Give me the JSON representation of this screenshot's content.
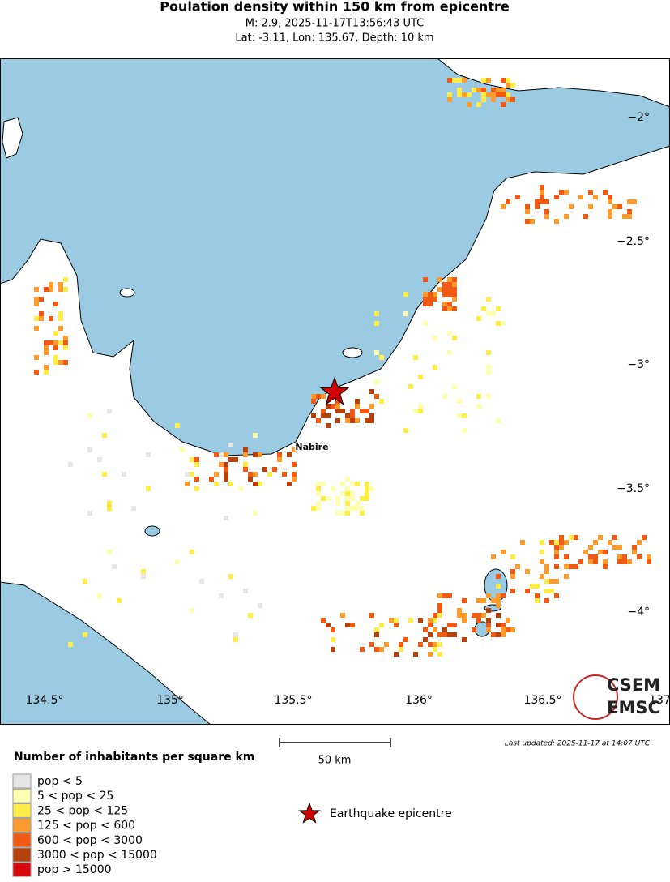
{
  "header": {
    "title": "Poulation density within 150 km from epicentre",
    "line1": "M: 2.9,  2025-11-17T13:56:43 UTC",
    "line2": "Lat: -3.11, Lon: 135.67, Depth: 10 km"
  },
  "map": {
    "lon_labels": [
      "134.5°",
      "135°",
      "135.5°",
      "136°",
      "136.5°",
      "137°"
    ],
    "lat_labels": [
      "−2°",
      "−2.5°",
      "−3°",
      "−3.5°",
      "−4°"
    ],
    "place": "Nabire",
    "scale": "50 km",
    "updated": "Last updated: 2025-11-17 at 14:07 UTC",
    "logo": [
      "CSEM",
      "EMSC"
    ]
  },
  "legend": {
    "title": "Number of inhabitants per square km",
    "items": [
      {
        "label": "pop < 5",
        "color": "#e6e6e6"
      },
      {
        "label": "5 < pop < 25",
        "color": "#ffffb2"
      },
      {
        "label": "25 < pop < 125",
        "color": "#fdec4a"
      },
      {
        "label": "125 < pop < 600",
        "color": "#fd9b2f"
      },
      {
        "label": "600 < pop < 3000",
        "color": "#f05a14"
      },
      {
        "label": "3000 < pop < 15000",
        "color": "#b5410c"
      },
      {
        "label": "pop > 15000",
        "color": "#d7090c"
      }
    ],
    "epicentre": "Earthquake epicentre"
  }
}
